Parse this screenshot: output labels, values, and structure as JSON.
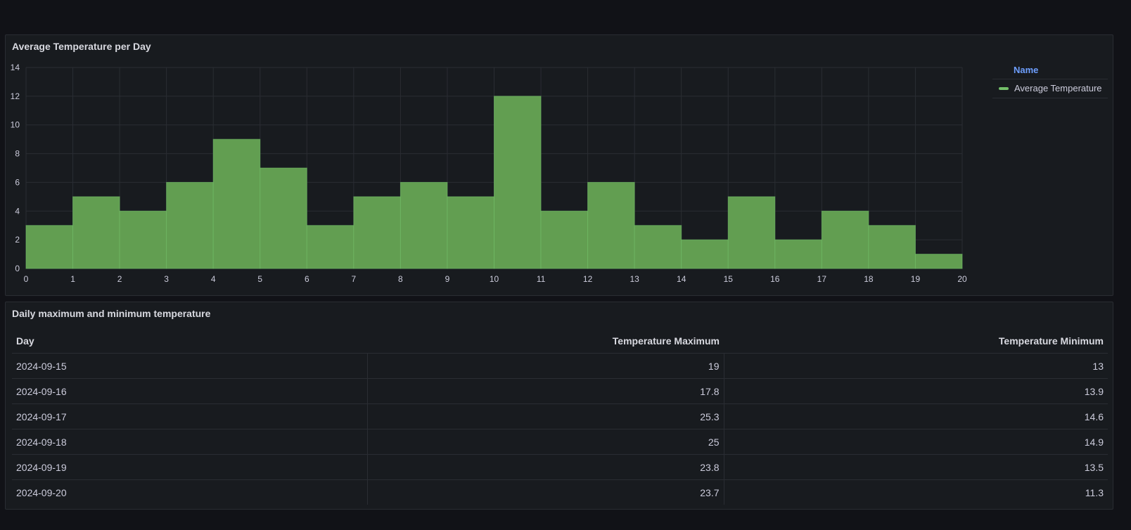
{
  "colors": {
    "background": "#111217",
    "panel": "#181b1f",
    "border": "#2a2d33",
    "bar_fill": "#629e51",
    "bar_stroke": "#73bf69",
    "legend_header": "#6e9fff"
  },
  "histogram_panel": {
    "title": "Average Temperature per Day",
    "legend": {
      "header": "Name",
      "items": [
        {
          "label": "Average Temperature",
          "color": "#73bf69"
        }
      ]
    }
  },
  "chart_data": {
    "type": "bar",
    "title": "Average Temperature per Day",
    "xlabel": "",
    "ylabel": "",
    "bin_edges": [
      0,
      1,
      2,
      3,
      4,
      5,
      6,
      7,
      8,
      9,
      10,
      11,
      12,
      13,
      14,
      15,
      16,
      17,
      18,
      19,
      20
    ],
    "values": [
      3,
      5,
      4,
      6,
      9,
      7,
      3,
      5,
      6,
      5,
      12,
      4,
      6,
      3,
      2,
      5,
      2,
      4,
      3,
      1
    ],
    "x_ticks": [
      "0",
      "1",
      "2",
      "3",
      "4",
      "5",
      "6",
      "7",
      "8",
      "9",
      "10",
      "11",
      "12",
      "13",
      "14",
      "15",
      "16",
      "17",
      "18",
      "19",
      "20"
    ],
    "y_ticks": [
      "0",
      "2",
      "4",
      "6",
      "8",
      "10",
      "12",
      "14"
    ],
    "xlim": [
      0,
      20
    ],
    "ylim": [
      0,
      14
    ],
    "grid": true,
    "legend_position": "right",
    "series": [
      {
        "name": "Average Temperature",
        "values": [
          3,
          5,
          4,
          6,
          9,
          7,
          3,
          5,
          6,
          5,
          12,
          4,
          6,
          3,
          2,
          5,
          2,
          4,
          3,
          1
        ]
      }
    ]
  },
  "table_panel": {
    "title": "Daily maximum and minimum temperature",
    "columns": [
      "Day",
      "Temperature Maximum",
      "Temperature Minimum"
    ],
    "rows": [
      [
        "2024-09-15",
        "19",
        "13"
      ],
      [
        "2024-09-16",
        "17.8",
        "13.9"
      ],
      [
        "2024-09-17",
        "25.3",
        "14.6"
      ],
      [
        "2024-09-18",
        "25",
        "14.9"
      ],
      [
        "2024-09-19",
        "23.8",
        "13.5"
      ],
      [
        "2024-09-20",
        "23.7",
        "11.3"
      ]
    ]
  }
}
